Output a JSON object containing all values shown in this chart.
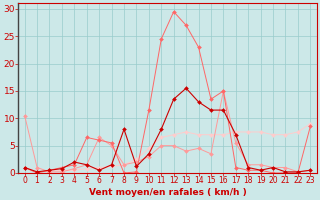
{
  "bg_color": "#cce8e8",
  "grid_color": "#99cccc",
  "xlabel": "Vent moyen/en rafales ( km/h )",
  "xlabel_color": "#cc0000",
  "xlabel_fontsize": 6.5,
  "tick_color": "#cc0000",
  "tick_fontsize": 5.5,
  "ytick_fontsize": 6.5,
  "xlim": [
    -0.5,
    23.5
  ],
  "ylim": [
    0,
    31
  ],
  "yticks": [
    0,
    5,
    10,
    15,
    20,
    25,
    30
  ],
  "xticks": [
    0,
    1,
    2,
    3,
    4,
    5,
    6,
    7,
    8,
    9,
    10,
    11,
    12,
    13,
    14,
    15,
    16,
    17,
    18,
    19,
    20,
    21,
    22,
    23
  ],
  "line_light_pink": {
    "x": [
      0,
      1,
      2,
      3,
      4,
      5,
      6,
      7,
      8,
      9,
      10,
      11,
      12,
      13,
      14,
      15,
      16,
      17,
      18,
      19,
      20,
      21,
      22,
      23
    ],
    "y": [
      1.0,
      0.2,
      0.3,
      0.5,
      0.5,
      0.8,
      1.0,
      1.2,
      1.5,
      2.5,
      4.5,
      6.5,
      7.0,
      7.5,
      7.0,
      7.0,
      7.0,
      7.5,
      7.5,
      7.5,
      7.0,
      7.0,
      7.5,
      9.0
    ],
    "color": "#ffcccc",
    "marker": "D",
    "markersize": 2.0,
    "lw": 0.7
  },
  "line_medium_pink": {
    "x": [
      0,
      1,
      2,
      3,
      4,
      5,
      6,
      7,
      8,
      9,
      10,
      11,
      12,
      13,
      14,
      15,
      16,
      17,
      18,
      19,
      20,
      21,
      22,
      23
    ],
    "y": [
      10.5,
      1.0,
      0.2,
      0.2,
      0.8,
      1.5,
      6.5,
      5.0,
      1.5,
      2.0,
      3.0,
      5.0,
      5.0,
      4.0,
      4.5,
      3.5,
      15.0,
      5.5,
      1.5,
      1.5,
      1.0,
      1.0,
      0.2,
      0.5
    ],
    "color": "#ff9999",
    "marker": "D",
    "markersize": 2.0,
    "lw": 0.7
  },
  "line_bright_pink": {
    "x": [
      0,
      1,
      2,
      3,
      4,
      5,
      6,
      7,
      8,
      9,
      10,
      11,
      12,
      13,
      14,
      15,
      16,
      17,
      18,
      19,
      20,
      21,
      22,
      23
    ],
    "y": [
      1.0,
      0.0,
      0.5,
      1.0,
      1.5,
      6.5,
      6.0,
      5.5,
      0.0,
      0.2,
      11.5,
      24.5,
      29.5,
      27.0,
      23.0,
      13.5,
      15.0,
      1.0,
      0.5,
      0.5,
      0.0,
      0.0,
      0.0,
      8.5
    ],
    "color": "#ff6666",
    "marker": "D",
    "markersize": 2.0,
    "lw": 0.7
  },
  "line_dark_red": {
    "x": [
      0,
      1,
      2,
      3,
      4,
      5,
      6,
      7,
      8,
      9,
      10,
      11,
      12,
      13,
      14,
      15,
      16,
      17,
      18,
      19,
      20,
      21,
      22,
      23
    ],
    "y": [
      1.0,
      0.2,
      0.5,
      0.8,
      2.0,
      1.5,
      0.5,
      1.5,
      8.0,
      1.2,
      3.5,
      8.0,
      13.5,
      15.5,
      13.0,
      11.5,
      11.5,
      7.0,
      1.0,
      0.5,
      1.0,
      0.2,
      0.2,
      0.5
    ],
    "color": "#cc0000",
    "marker": "D",
    "markersize": 2.0,
    "lw": 0.8
  }
}
